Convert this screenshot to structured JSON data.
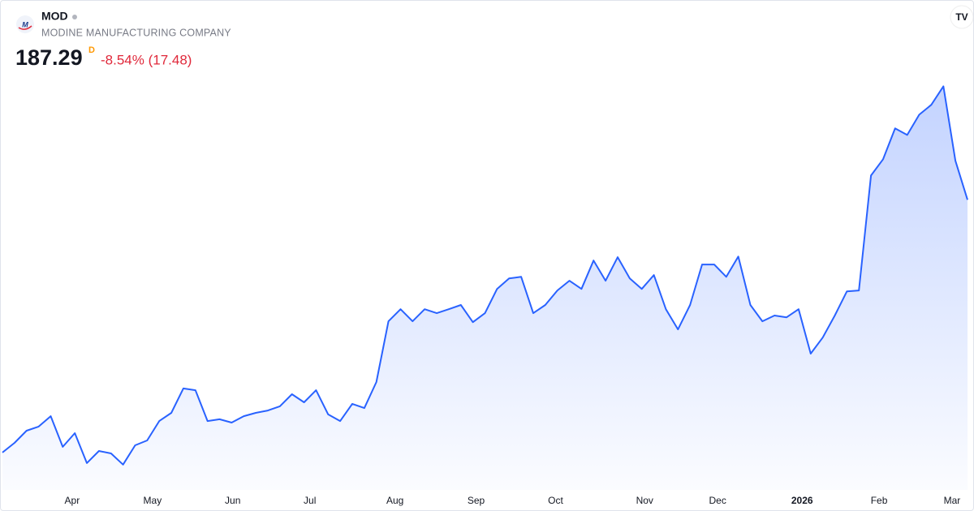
{
  "header": {
    "symbol": "MOD",
    "company": "MODINE MANUFACTURING COMPANY",
    "price": "187.29",
    "price_flag": "D",
    "change": "-8.54% (17.48)"
  },
  "chart_data": {
    "type": "area",
    "color": "#2962ff",
    "values": [
      72.5,
      76.9,
      82.4,
      84.3,
      89.0,
      75.1,
      81.3,
      67.7,
      73.2,
      72.1,
      67.0,
      75.8,
      78.0,
      86.8,
      90.5,
      101.6,
      100.8,
      86.8,
      87.6,
      86.1,
      89.0,
      90.5,
      91.6,
      93.5,
      99.0,
      95.3,
      100.8,
      89.8,
      86.8,
      94.6,
      92.7,
      104.5,
      132.1,
      137.6,
      132.1,
      137.6,
      135.8,
      137.6,
      139.5,
      131.7,
      135.8,
      146.8,
      151.6,
      152.3,
      135.8,
      139.5,
      146.1,
      150.5,
      146.8,
      159.7,
      150.5,
      161.2,
      151.6,
      146.8,
      153.1,
      137.6,
      128.4,
      139.5,
      157.9,
      157.9,
      152.3,
      161.5,
      139.5,
      132.1,
      134.7,
      133.9,
      137.6,
      117.4,
      124.7,
      134.7,
      145.7,
      146.1,
      198.3,
      205.7,
      219.7,
      216.7,
      225.9,
      230.4,
      238.8,
      205.0,
      187.29
    ],
    "xlim": [
      0,
      80
    ],
    "xticks": [
      {
        "value": 5.78,
        "label": "Apr"
      },
      {
        "value": 12.44,
        "label": "May"
      },
      {
        "value": 19.09,
        "label": "Jun"
      },
      {
        "value": 25.48,
        "label": "Jul"
      },
      {
        "value": 32.54,
        "label": "Aug"
      },
      {
        "value": 39.26,
        "label": "Sep"
      },
      {
        "value": 45.85,
        "label": "Oct"
      },
      {
        "value": 53.24,
        "label": "Nov"
      },
      {
        "value": 59.29,
        "label": "Dec"
      },
      {
        "value": 66.29,
        "label": "2026"
      },
      {
        "value": 72.67,
        "label": "Feb"
      },
      {
        "value": 78.72,
        "label": "Mar"
      }
    ],
    "ylim": [
      50,
      250
    ]
  }
}
